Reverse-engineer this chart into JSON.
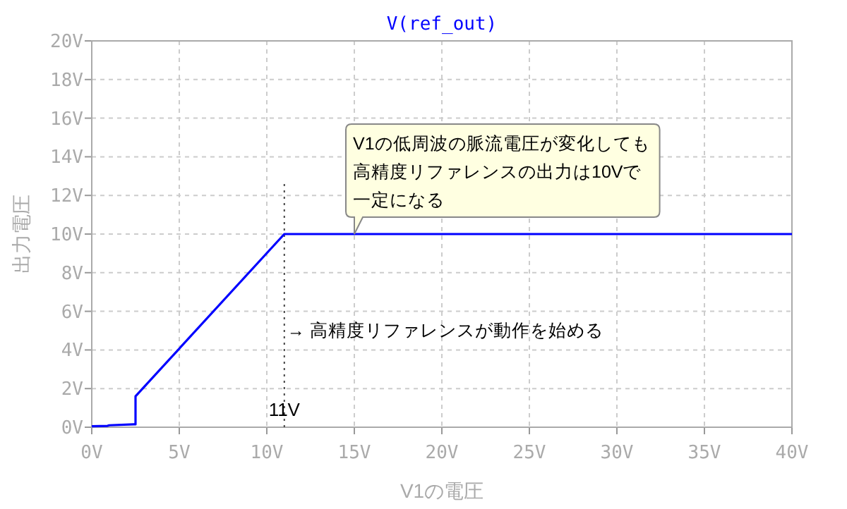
{
  "chart_data": {
    "type": "line",
    "title": "V(ref_out)",
    "xlabel": "V1の電圧",
    "ylabel": "出力電圧",
    "x": [
      0,
      0.9,
      1,
      2.4,
      2.5,
      2.5,
      11,
      40
    ],
    "series": [
      {
        "color": "#0000ff",
        "values": [
          0.05,
          0.07,
          0.1,
          0.15,
          0.15,
          1.6,
          10,
          10
        ]
      }
    ],
    "xlim": [
      0,
      40
    ],
    "ylim": [
      0,
      20
    ],
    "xticks": [
      {
        "value": 0,
        "label": "0V"
      },
      {
        "value": 5,
        "label": "5V"
      },
      {
        "value": 10,
        "label": "10V"
      },
      {
        "value": 15,
        "label": "15V"
      },
      {
        "value": 20,
        "label": "20V"
      },
      {
        "value": 25,
        "label": "25V"
      },
      {
        "value": 30,
        "label": "30V"
      },
      {
        "value": 35,
        "label": "35V"
      },
      {
        "value": 40,
        "label": "40V"
      }
    ],
    "yticks": [
      {
        "value": 0,
        "label": "0V"
      },
      {
        "value": 2,
        "label": "2V"
      },
      {
        "value": 4,
        "label": "4V"
      },
      {
        "value": 6,
        "label": "6V"
      },
      {
        "value": 8,
        "label": "8V"
      },
      {
        "value": 10,
        "label": "10V"
      },
      {
        "value": 12,
        "label": "12V"
      },
      {
        "value": 14,
        "label": "14V"
      },
      {
        "value": 16,
        "label": "16V"
      },
      {
        "value": 18,
        "label": "18V"
      },
      {
        "value": 20,
        "label": "20V"
      }
    ],
    "grid": true,
    "line_style": "solid",
    "ref_lines": [
      {
        "axis": "x",
        "value": 11,
        "label": "11V",
        "line_style": "dotted",
        "color": "#444444"
      }
    ],
    "annotations": [
      {
        "text": "V1の低周波の脈流電圧が変化しても高精度リファレンスの出力は10Vで一定になる",
        "x": 15,
        "y": 10
      },
      {
        "text": "→ 高精度リファレンスが動作を始める",
        "x": 11,
        "y": 5
      }
    ]
  }
}
